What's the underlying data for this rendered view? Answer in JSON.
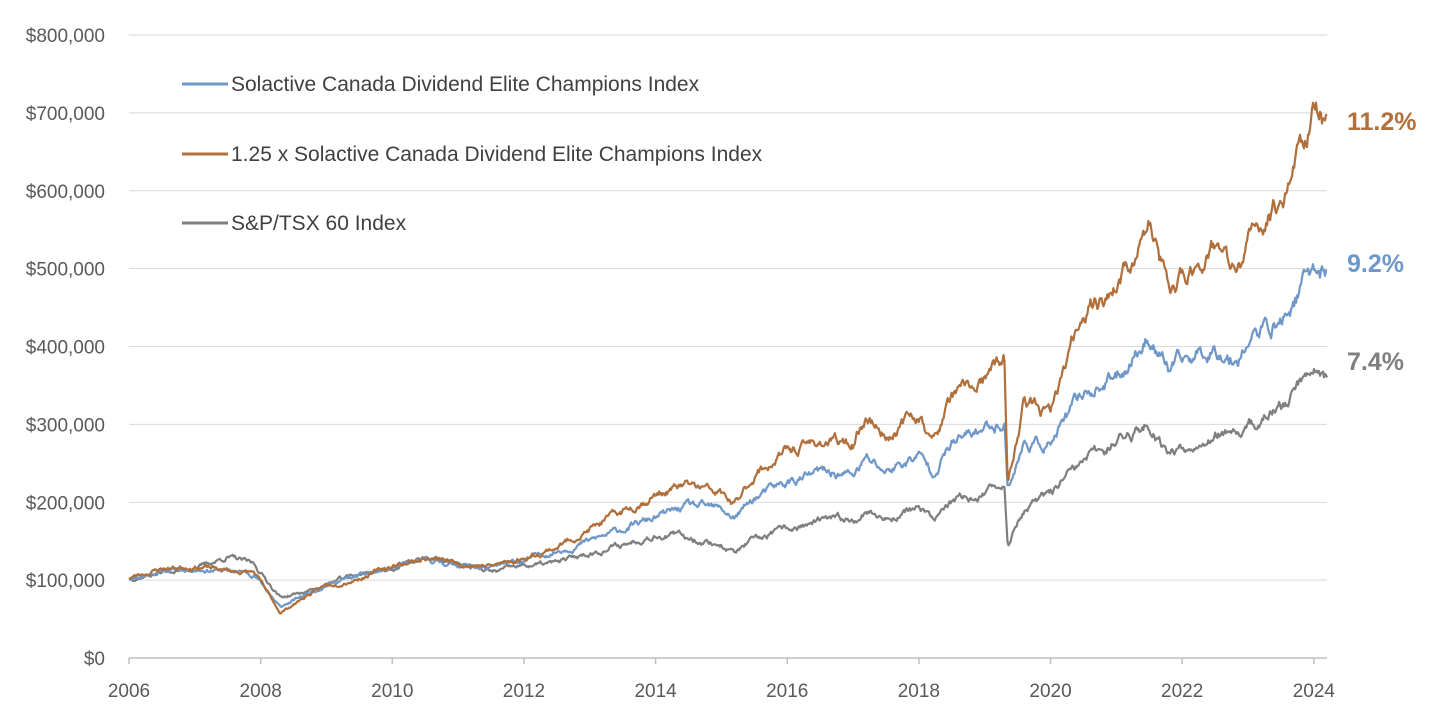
{
  "chart_data": {
    "type": "line",
    "title": "",
    "xlabel": "",
    "ylabel": "",
    "xlim": [
      2006,
      2024.2
    ],
    "ylim": [
      0,
      800000
    ],
    "x_ticks": [
      2006,
      2008,
      2010,
      2012,
      2014,
      2016,
      2018,
      2020,
      2022,
      2024
    ],
    "x_tick_labels": [
      "2006",
      "2008",
      "2010",
      "2012",
      "2014",
      "2016",
      "2018",
      "2020",
      "2022",
      "2024"
    ],
    "y_ticks": [
      0,
      100000,
      200000,
      300000,
      400000,
      500000,
      600000,
      700000,
      800000
    ],
    "y_tick_labels": [
      "$0",
      "$100,000",
      "$200,000",
      "$300,000",
      "$400,000",
      "$500,000",
      "$600,000",
      "$700,000",
      "$800,000"
    ],
    "grid": "horizontal",
    "legend_position": "top-left",
    "series": [
      {
        "name": "Solactive Canada Dividend Elite Champions Index",
        "color": "#6f97c7",
        "end_label": "9.2%",
        "x": [
          2006.0,
          2006.5,
          2007.0,
          2007.5,
          2007.9,
          2008.3,
          2008.7,
          2009.0,
          2009.5,
          2010.0,
          2010.5,
          2011.0,
          2011.5,
          2012.0,
          2012.5,
          2013.0,
          2013.5,
          2014.0,
          2014.5,
          2015.0,
          2015.2,
          2015.5,
          2016.0,
          2016.5,
          2017.0,
          2017.2,
          2017.5,
          2018.0,
          2018.2,
          2018.5,
          2019.0,
          2019.3,
          2019.35,
          2019.6,
          2020.0,
          2020.5,
          2021.0,
          2021.5,
          2021.8,
          2022.0,
          2022.5,
          2022.8,
          2023.0,
          2023.5,
          2024.0,
          2024.2
        ],
        "y": [
          102000,
          112000,
          115000,
          112000,
          108000,
          65000,
          82000,
          95000,
          105000,
          115000,
          125000,
          120000,
          115000,
          125000,
          138000,
          150000,
          165000,
          180000,
          195000,
          190000,
          180000,
          205000,
          225000,
          238000,
          235000,
          255000,
          240000,
          260000,
          240000,
          275000,
          295000,
          305000,
          220000,
          275000,
          275000,
          340000,
          360000,
          415000,
          370000,
          380000,
          400000,
          385000,
          410000,
          430000,
          500000,
          495000
        ]
      },
      {
        "name": "1.25 x Solactive Canada Dividend Elite Champions Index",
        "color": "#b06f3b",
        "end_label": "11.2%",
        "x": [
          2006.0,
          2006.5,
          2007.0,
          2007.5,
          2007.9,
          2008.3,
          2008.7,
          2009.0,
          2009.5,
          2010.0,
          2010.5,
          2011.0,
          2011.5,
          2012.0,
          2012.5,
          2013.0,
          2013.5,
          2014.0,
          2014.5,
          2015.0,
          2015.2,
          2015.5,
          2016.0,
          2016.5,
          2017.0,
          2017.2,
          2017.5,
          2018.0,
          2018.2,
          2018.5,
          2019.0,
          2019.3,
          2019.35,
          2019.6,
          2020.0,
          2020.5,
          2021.0,
          2021.5,
          2021.8,
          2022.0,
          2022.5,
          2022.8,
          2023.0,
          2023.5,
          2024.0,
          2024.2
        ],
        "y": [
          103000,
          115000,
          118000,
          112000,
          110000,
          58000,
          80000,
          93000,
          103000,
          118000,
          128000,
          122000,
          118000,
          128000,
          143000,
          165000,
          188000,
          210000,
          222000,
          210000,
          195000,
          235000,
          265000,
          278000,
          275000,
          312000,
          285000,
          315000,
          275000,
          335000,
          355000,
          385000,
          220000,
          330000,
          310000,
          450000,
          475000,
          555000,
          470000,
          485000,
          535000,
          490000,
          530000,
          590000,
          705000,
          680000
        ]
      },
      {
        "name": "S&P/TSX 60 Index",
        "color": "#7f7f7f",
        "end_label": "7.4%",
        "x": [
          2006.0,
          2006.5,
          2007.0,
          2007.5,
          2007.9,
          2008.3,
          2008.7,
          2009.0,
          2009.5,
          2010.0,
          2010.5,
          2011.0,
          2011.5,
          2012.0,
          2012.5,
          2013.0,
          2013.5,
          2014.0,
          2014.5,
          2015.0,
          2015.2,
          2015.5,
          2016.0,
          2016.5,
          2017.0,
          2017.2,
          2017.5,
          2018.0,
          2018.2,
          2018.5,
          2019.0,
          2019.3,
          2019.35,
          2019.6,
          2020.0,
          2020.5,
          2021.0,
          2021.5,
          2021.8,
          2022.0,
          2022.5,
          2022.8,
          2023.0,
          2023.5,
          2024.0,
          2024.2
        ],
        "y": [
          102000,
          110000,
          115000,
          130000,
          120000,
          78000,
          85000,
          95000,
          108000,
          115000,
          128000,
          122000,
          110000,
          118000,
          122000,
          135000,
          145000,
          160000,
          155000,
          145000,
          135000,
          150000,
          165000,
          175000,
          178000,
          190000,
          178000,
          195000,
          175000,
          200000,
          210000,
          225000,
          150000,
          190000,
          210000,
          250000,
          280000,
          300000,
          265000,
          270000,
          290000,
          280000,
          295000,
          320000,
          380000,
          365000
        ]
      }
    ]
  }
}
